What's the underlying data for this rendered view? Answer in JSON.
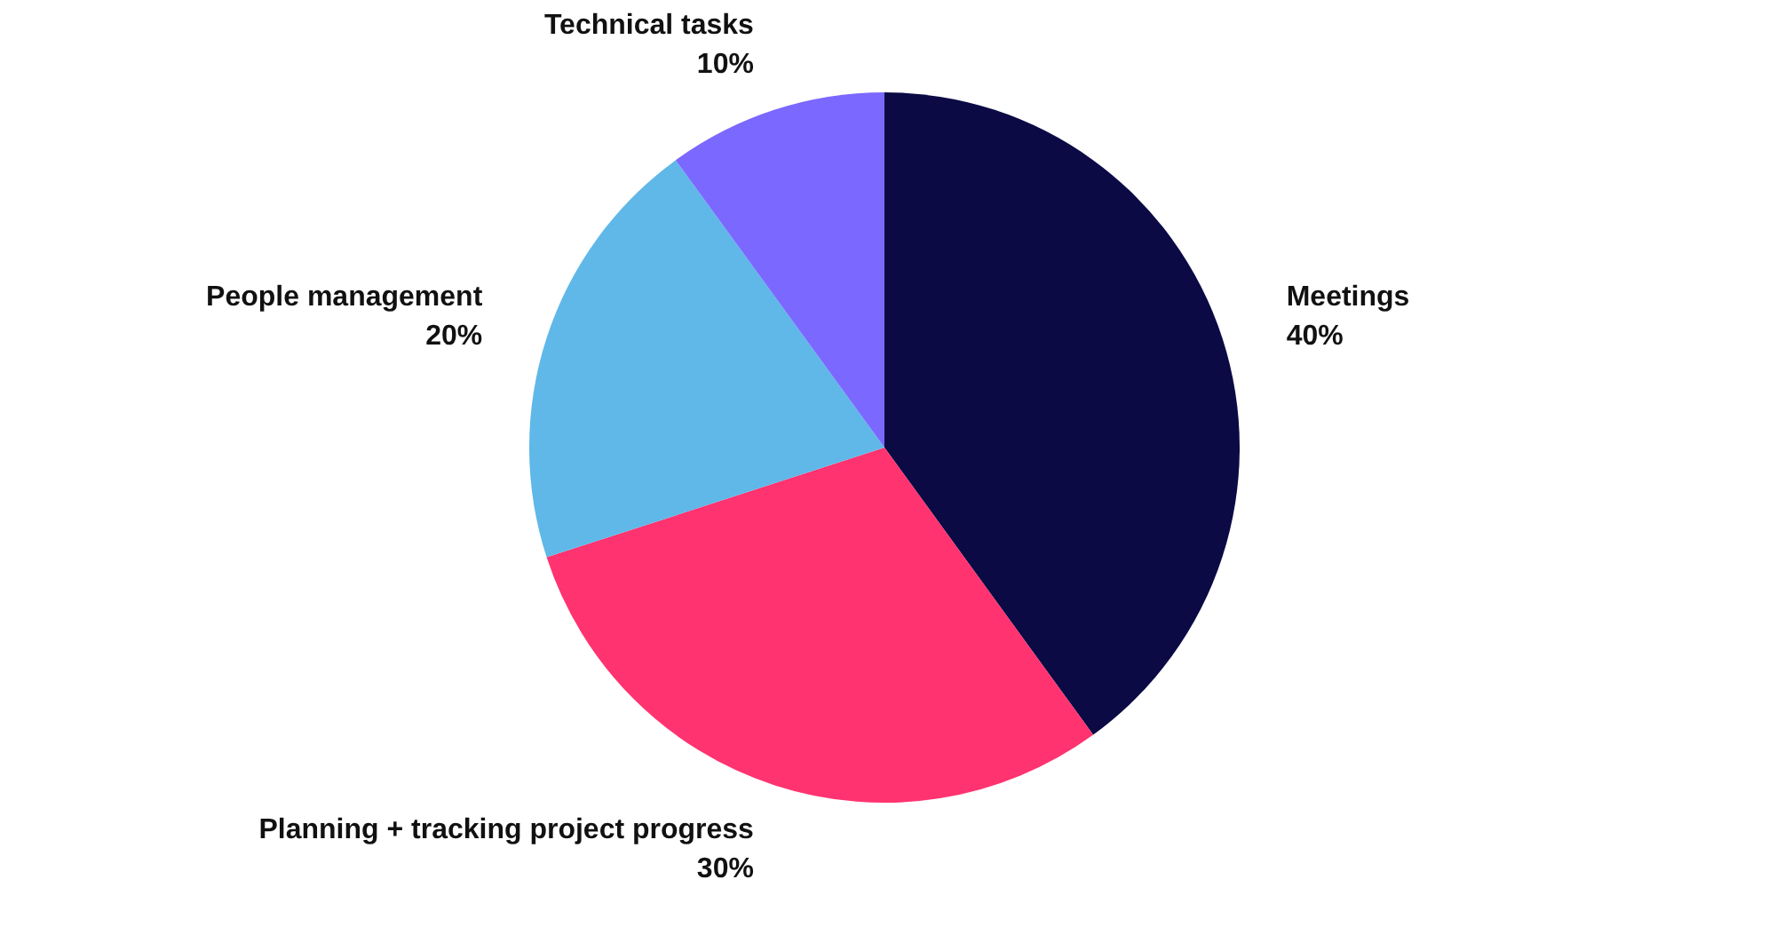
{
  "chart_data": {
    "type": "pie",
    "categories": [
      "Meetings",
      "Planning + tracking project progress",
      "People management",
      "Technical tasks"
    ],
    "values": [
      40,
      30,
      20,
      10
    ],
    "value_labels": [
      "40%",
      "30%",
      "20%",
      "10%"
    ],
    "colors": [
      "#0b0a45",
      "#ff3370",
      "#5fb8e8",
      "#7b68ff"
    ],
    "legend": false
  }
}
